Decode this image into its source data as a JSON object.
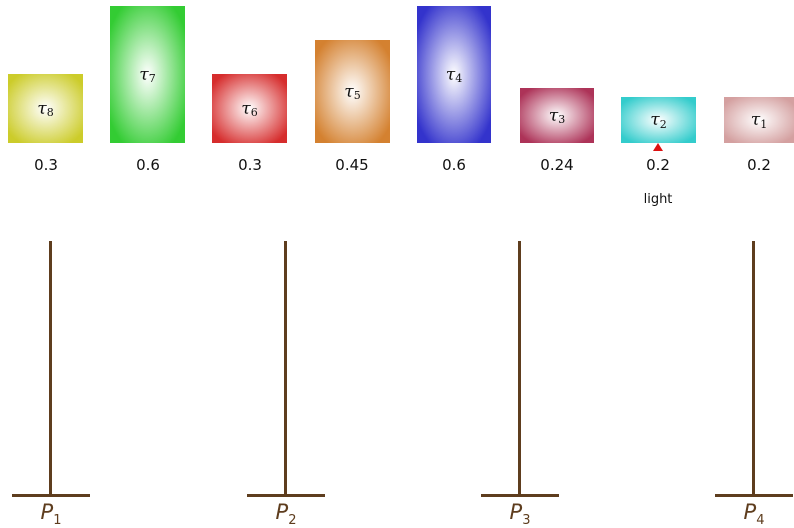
{
  "tasks": [
    {
      "name": "τ",
      "index": "8",
      "utilization": "0.3",
      "color": "#cccc2a"
    },
    {
      "name": "τ",
      "index": "7",
      "utilization": "0.6",
      "color": "#33cc33"
    },
    {
      "name": "τ",
      "index": "6",
      "utilization": "0.3",
      "color": "#d62d2d"
    },
    {
      "name": "τ",
      "index": "5",
      "utilization": "0.45",
      "color": "#d48130"
    },
    {
      "name": "τ",
      "index": "4",
      "utilization": "0.6",
      "color": "#3333cc"
    },
    {
      "name": "τ",
      "index": "3",
      "utilization": "0.24",
      "color": "#ad3358"
    },
    {
      "name": "τ",
      "index": "2",
      "utilization": "0.2",
      "color": "#33cccc"
    },
    {
      "name": "τ",
      "index": "1",
      "utilization": "0.2",
      "color": "#d4a0a0"
    }
  ],
  "pointer": {
    "label": "light",
    "color": "#dd1111"
  },
  "processors": [
    {
      "name": "P",
      "index": "1"
    },
    {
      "name": "P",
      "index": "2"
    },
    {
      "name": "P",
      "index": "3"
    },
    {
      "name": "P",
      "index": "4"
    }
  ],
  "processor_color": "#5e3d1e"
}
